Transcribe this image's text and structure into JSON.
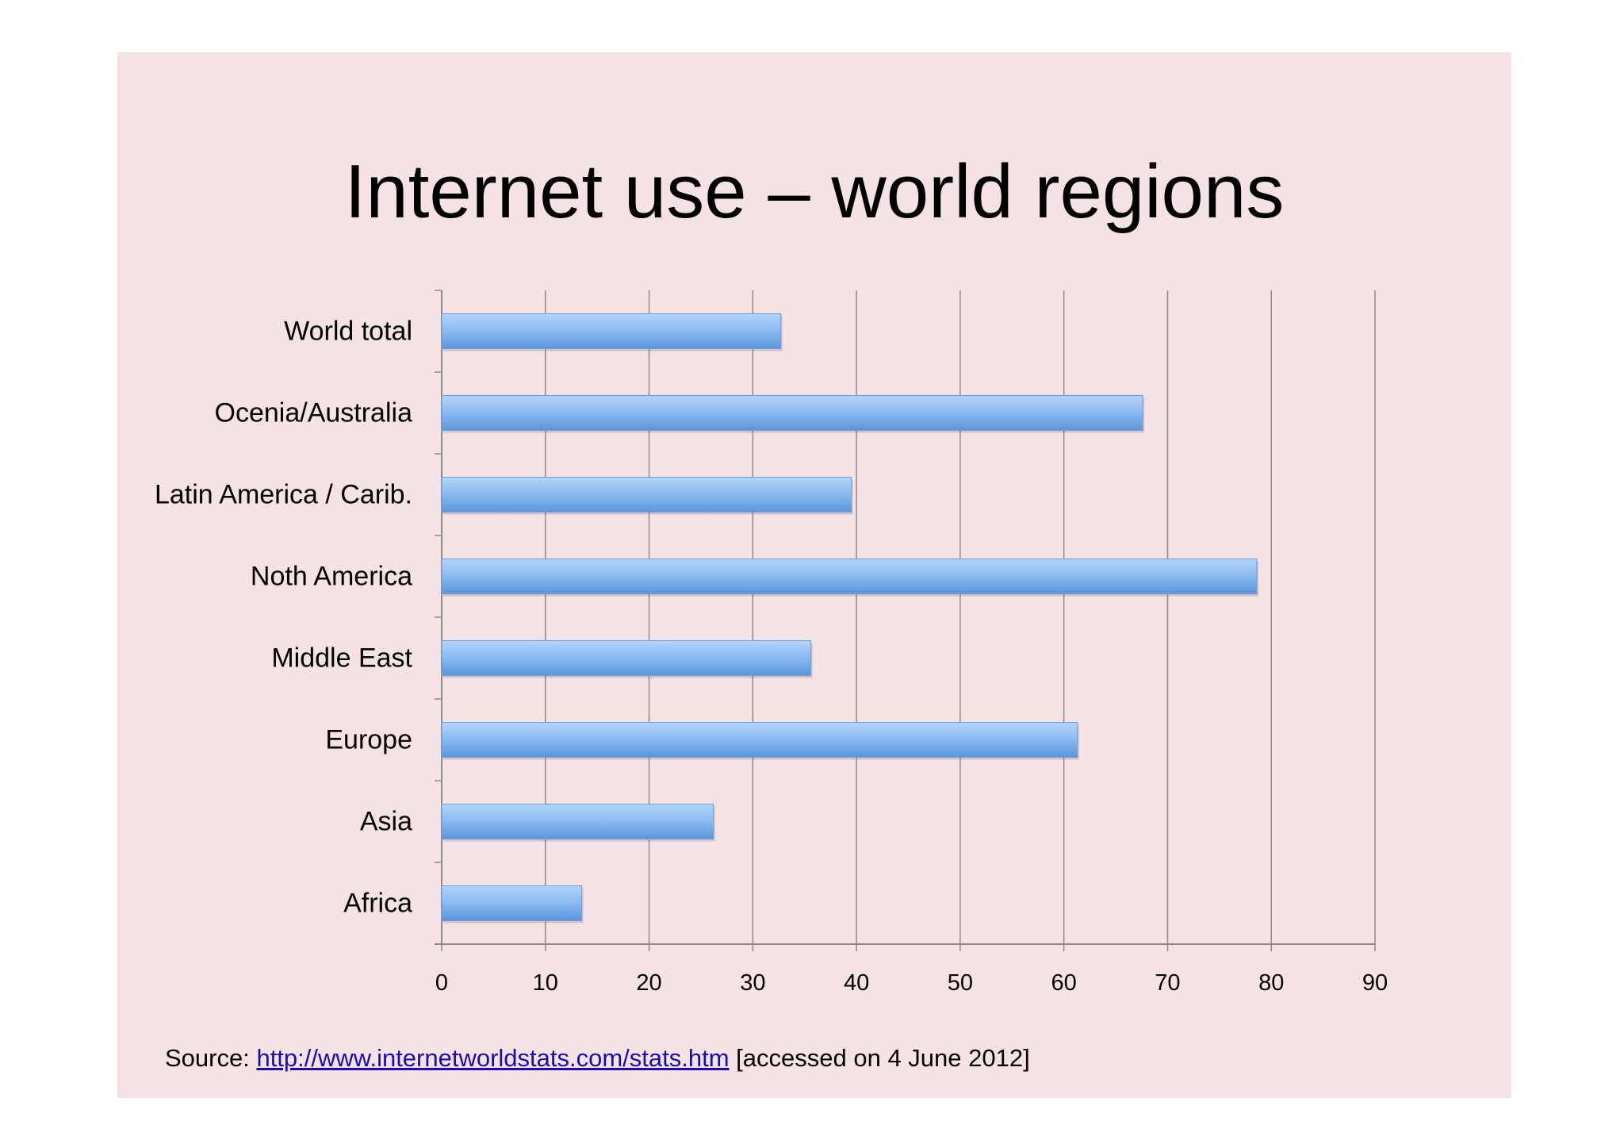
{
  "chart_data": {
    "type": "bar",
    "orientation": "horizontal",
    "title": "Internet use – world regions",
    "xlabel": "",
    "ylabel": "",
    "categories": [
      "World total",
      "Ocenia/Australia",
      "Latin America / Carib.",
      "Noth America",
      "Middle East",
      "Europe",
      "Asia",
      "Africa"
    ],
    "values": [
      32.7,
      67.6,
      39.5,
      78.6,
      35.6,
      61.3,
      26.2,
      13.5
    ],
    "xlim": [
      0,
      90
    ],
    "xticks": [
      "0",
      "10",
      "20",
      "30",
      "40",
      "50",
      "60",
      "70",
      "80",
      "90"
    ],
    "grid": "vertical",
    "legend": "none",
    "colors": {
      "bar_light": "#a9cdf7",
      "bar_dark": "#5a95db",
      "grid": "#8a8a8a",
      "background": "#f4e2e4"
    }
  },
  "source": {
    "prefix": "Source: ",
    "link_text": "http://www.internetworldstats.com/stats.htm",
    "suffix": " [accessed on 4 June 2012]"
  }
}
